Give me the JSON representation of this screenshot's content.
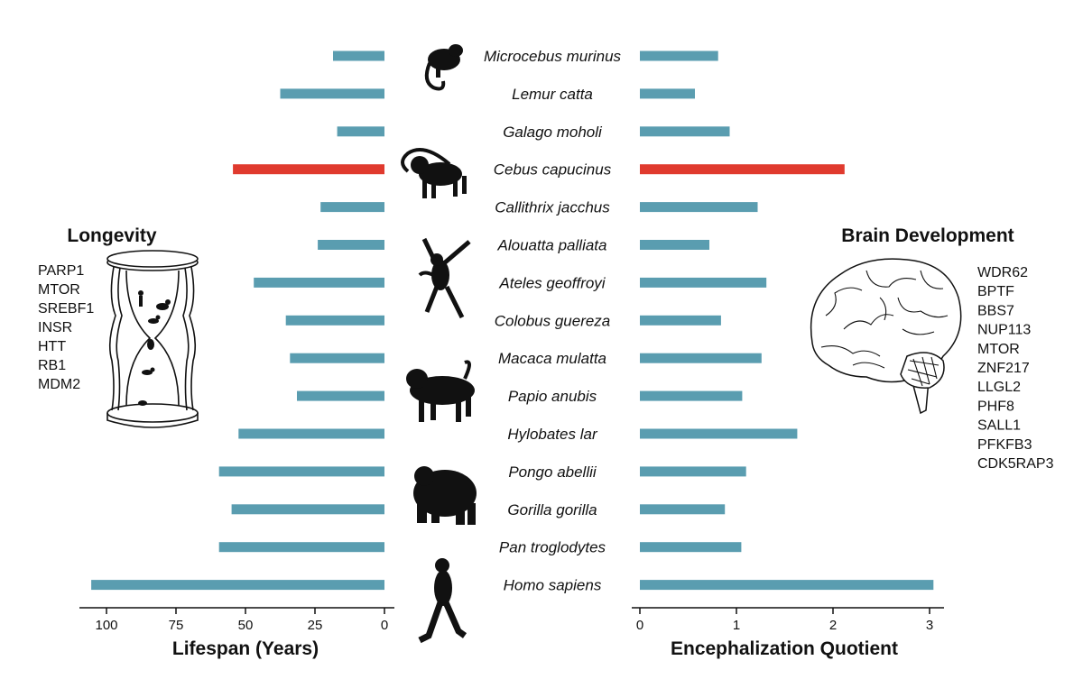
{
  "colors": {
    "default_bar": "#5a9db0",
    "highlight_bar": "#e03a2e",
    "axis": "#111111"
  },
  "chart_data": [
    {
      "type": "bar",
      "orientation": "horizontal",
      "direction": "right-to-left",
      "categories": [
        "Microcebus murinus",
        "Lemur catta",
        "Galago moholi",
        "Cebus capucinus",
        "Callithrix jacchus",
        "Alouatta palliata",
        "Ateles geoffroyi",
        "Colobus guereza",
        "Macaca mulatta",
        "Papio anubis",
        "Hylobates lar",
        "Pongo abellii",
        "Gorilla gorilla",
        "Pan troglodytes",
        "Homo sapiens"
      ],
      "values": [
        18.5,
        37.5,
        17,
        54.5,
        23,
        24,
        47,
        35.5,
        34,
        31.5,
        52.5,
        59.5,
        55,
        59.5,
        105.5
      ],
      "highlight": [
        "Cebus capucinus"
      ],
      "xlabel": "Lifespan (Years)",
      "ticks": [
        100,
        75,
        50,
        25,
        0
      ],
      "xlim": [
        0,
        110
      ]
    },
    {
      "type": "bar",
      "orientation": "horizontal",
      "categories": [
        "Microcebus murinus",
        "Lemur catta",
        "Galago moholi",
        "Cebus capucinus",
        "Callithrix jacchus",
        "Alouatta palliata",
        "Ateles geoffroyi",
        "Colobus guereza",
        "Macaca mulatta",
        "Papio anubis",
        "Hylobates lar",
        "Pongo abellii",
        "Gorilla gorilla",
        "Pan troglodytes",
        "Homo sapiens"
      ],
      "values": [
        0.81,
        0.57,
        0.93,
        2.12,
        1.22,
        0.72,
        1.31,
        0.84,
        1.26,
        1.06,
        1.63,
        1.1,
        0.88,
        1.05,
        3.04
      ],
      "highlight": [
        "Cebus capucinus"
      ],
      "xlabel": "Encephalization Quotient",
      "ticks": [
        0,
        1,
        2,
        3
      ],
      "xlim": [
        0,
        3.2
      ]
    }
  ],
  "longevity": {
    "title": "Longevity",
    "genes": [
      "PARP1",
      "MTOR",
      "SREBF1",
      "INSR",
      "HTT",
      "RB1",
      "MDM2"
    ]
  },
  "brain": {
    "title": "Brain Development",
    "genes": [
      "WDR62",
      "BPTF",
      "BBS7",
      "NUP113",
      "MTOR",
      "ZNF217",
      "LLGL2",
      "PHF8",
      "SALL1",
      "PFKFB3",
      "CDK5RAP3"
    ]
  }
}
